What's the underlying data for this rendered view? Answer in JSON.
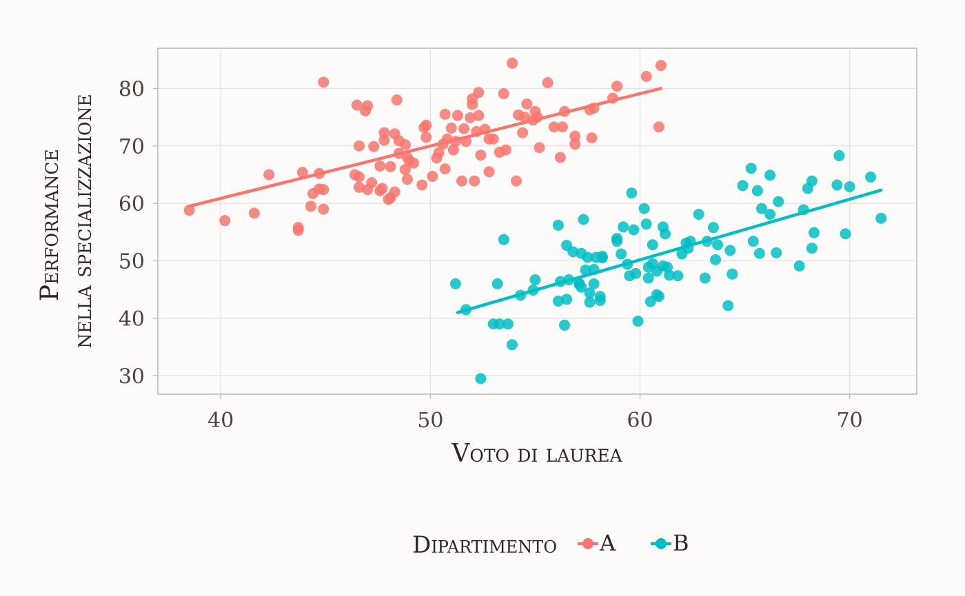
{
  "chart_data": {
    "type": "scatter",
    "xlabel": "Voto di laurea",
    "ylabel_line1": "Performance",
    "ylabel_line2": "nella specializzazione",
    "xlim": [
      37,
      73.2
    ],
    "ylim": [
      26.8,
      87
    ],
    "xticks": [
      40,
      50,
      60,
      70
    ],
    "yticks": [
      30,
      40,
      50,
      60,
      70,
      80
    ],
    "xtick_labels": [
      "40",
      "50",
      "60",
      "70"
    ],
    "ytick_labels": [
      "30",
      "40",
      "50",
      "60",
      "70",
      "80"
    ],
    "grid": true,
    "legend": {
      "title": "Dipartimento",
      "position": "bottom"
    },
    "series": [
      {
        "name": "A",
        "color": "#f8766d",
        "fit": {
          "x": [
            38.5,
            61.0
          ],
          "y": [
            59.5,
            80.0
          ]
        },
        "points": [
          [
            38.5,
            58.8
          ],
          [
            40.2,
            57.0
          ],
          [
            41.6,
            58.3
          ],
          [
            42.3,
            65.0
          ],
          [
            43.7,
            55.8
          ],
          [
            43.7,
            55.3
          ],
          [
            43.9,
            65.4
          ],
          [
            44.3,
            59.5
          ],
          [
            44.4,
            61.7
          ],
          [
            44.7,
            62.5
          ],
          [
            44.7,
            65.2
          ],
          [
            44.9,
            59.0
          ],
          [
            44.9,
            62.4
          ],
          [
            44.9,
            81.1
          ],
          [
            46.4,
            65.0
          ],
          [
            46.5,
            77.1
          ],
          [
            46.6,
            70.0
          ],
          [
            46.6,
            62.8
          ],
          [
            46.6,
            64.6
          ],
          [
            46.9,
            76.1
          ],
          [
            47.0,
            62.4
          ],
          [
            47.0,
            77.0
          ],
          [
            47.2,
            63.6
          ],
          [
            47.3,
            69.9
          ],
          [
            47.6,
            66.5
          ],
          [
            47.6,
            62.2
          ],
          [
            47.7,
            62.6
          ],
          [
            47.8,
            71.0
          ],
          [
            47.8,
            72.3
          ],
          [
            48.0,
            60.7
          ],
          [
            48.1,
            66.4
          ],
          [
            48.1,
            61.0
          ],
          [
            48.3,
            62.0
          ],
          [
            48.3,
            72.1
          ],
          [
            48.4,
            78.0
          ],
          [
            48.5,
            70.9
          ],
          [
            48.5,
            68.7
          ],
          [
            48.8,
            70.2
          ],
          [
            48.8,
            65.9
          ],
          [
            48.9,
            68.0
          ],
          [
            48.9,
            64.2
          ],
          [
            49.0,
            67.4
          ],
          [
            49.2,
            67.0
          ],
          [
            49.6,
            63.2
          ],
          [
            49.7,
            73.2
          ],
          [
            49.8,
            73.6
          ],
          [
            49.8,
            71.5
          ],
          [
            50.1,
            64.7
          ],
          [
            50.3,
            67.9
          ],
          [
            50.4,
            68.8
          ],
          [
            50.6,
            70.3
          ],
          [
            50.7,
            75.5
          ],
          [
            50.7,
            66.0
          ],
          [
            50.8,
            71.2
          ],
          [
            51.0,
            73.1
          ],
          [
            51.1,
            69.3
          ],
          [
            51.2,
            70.8
          ],
          [
            51.3,
            75.3
          ],
          [
            51.5,
            63.9
          ],
          [
            51.6,
            73.0
          ],
          [
            51.7,
            70.8
          ],
          [
            51.9,
            74.9
          ],
          [
            52.0,
            77.2
          ],
          [
            52.0,
            78.2
          ],
          [
            52.1,
            63.9
          ],
          [
            52.2,
            72.5
          ],
          [
            52.3,
            79.3
          ],
          [
            52.3,
            75.3
          ],
          [
            52.4,
            68.4
          ],
          [
            52.6,
            72.9
          ],
          [
            52.8,
            71.2
          ],
          [
            52.8,
            65.5
          ],
          [
            53.0,
            71.2
          ],
          [
            53.3,
            68.9
          ],
          [
            53.5,
            79.1
          ],
          [
            53.6,
            69.3
          ],
          [
            53.9,
            84.4
          ],
          [
            54.1,
            63.9
          ],
          [
            54.2,
            75.4
          ],
          [
            54.4,
            72.3
          ],
          [
            54.5,
            75.0
          ],
          [
            54.6,
            77.3
          ],
          [
            54.9,
            74.5
          ],
          [
            55.0,
            76.0
          ],
          [
            55.1,
            75.0
          ],
          [
            55.2,
            69.7
          ],
          [
            55.6,
            81.0
          ],
          [
            55.9,
            73.3
          ],
          [
            56.2,
            68.0
          ],
          [
            56.3,
            73.3
          ],
          [
            56.4,
            76.0
          ],
          [
            56.9,
            71.7
          ],
          [
            56.9,
            70.3
          ],
          [
            57.6,
            76.3
          ],
          [
            57.7,
            71.4
          ],
          [
            57.8,
            76.6
          ],
          [
            58.7,
            78.3
          ],
          [
            58.9,
            80.4
          ],
          [
            60.3,
            82.1
          ],
          [
            60.9,
            73.3
          ],
          [
            61.0,
            84.0
          ]
        ]
      },
      {
        "name": "B",
        "color": "#00bfc4",
        "fit": {
          "x": [
            51.3,
            71.5
          ],
          "y": [
            41.0,
            62.3
          ]
        },
        "points": [
          [
            51.2,
            46.0
          ],
          [
            51.7,
            41.5
          ],
          [
            52.4,
            29.5
          ],
          [
            53.0,
            39.0
          ],
          [
            53.2,
            46.0
          ],
          [
            53.3,
            39.0
          ],
          [
            53.5,
            53.7
          ],
          [
            53.7,
            39.0
          ],
          [
            53.9,
            35.4
          ],
          [
            54.3,
            44.0
          ],
          [
            54.9,
            44.9
          ],
          [
            55.0,
            46.7
          ],
          [
            56.1,
            56.2
          ],
          [
            56.1,
            43.0
          ],
          [
            56.2,
            46.4
          ],
          [
            56.4,
            38.8
          ],
          [
            56.5,
            43.3
          ],
          [
            56.5,
            52.7
          ],
          [
            56.6,
            46.7
          ],
          [
            56.8,
            51.6
          ],
          [
            57.1,
            45.9
          ],
          [
            57.1,
            46.1
          ],
          [
            57.2,
            45.4
          ],
          [
            57.2,
            51.3
          ],
          [
            57.3,
            57.2
          ],
          [
            57.4,
            48.4
          ],
          [
            57.5,
            50.6
          ],
          [
            57.6,
            42.8
          ],
          [
            57.6,
            44.4
          ],
          [
            57.8,
            46.0
          ],
          [
            57.8,
            48.5
          ],
          [
            57.9,
            50.6
          ],
          [
            58.1,
            43.8
          ],
          [
            58.1,
            43.1
          ],
          [
            58.2,
            50.5
          ],
          [
            58.2,
            50.8
          ],
          [
            58.9,
            53.9
          ],
          [
            58.9,
            53.4
          ],
          [
            59.1,
            51.2
          ],
          [
            59.2,
            55.9
          ],
          [
            59.4,
            49.4
          ],
          [
            59.5,
            47.4
          ],
          [
            59.6,
            61.8
          ],
          [
            59.7,
            55.4
          ],
          [
            59.8,
            47.8
          ],
          [
            59.9,
            39.5
          ],
          [
            60.2,
            59.1
          ],
          [
            60.3,
            56.4
          ],
          [
            60.4,
            48.9
          ],
          [
            60.4,
            47.0
          ],
          [
            60.5,
            42.9
          ],
          [
            60.6,
            49.5
          ],
          [
            60.6,
            52.8
          ],
          [
            60.8,
            44.1
          ],
          [
            60.8,
            48.2
          ],
          [
            60.9,
            43.8
          ],
          [
            61.1,
            55.9
          ],
          [
            61.1,
            49.1
          ],
          [
            61.2,
            54.7
          ],
          [
            61.3,
            48.9
          ],
          [
            61.4,
            47.5
          ],
          [
            61.8,
            47.4
          ],
          [
            62.0,
            51.2
          ],
          [
            62.2,
            53.1
          ],
          [
            62.3,
            52.2
          ],
          [
            62.4,
            53.4
          ],
          [
            62.8,
            58.1
          ],
          [
            63.1,
            47.0
          ],
          [
            63.2,
            53.4
          ],
          [
            63.5,
            55.8
          ],
          [
            63.6,
            50.2
          ],
          [
            63.7,
            52.8
          ],
          [
            64.2,
            42.2
          ],
          [
            64.3,
            51.8
          ],
          [
            64.4,
            47.7
          ],
          [
            64.9,
            63.1
          ],
          [
            65.3,
            66.1
          ],
          [
            65.4,
            53.4
          ],
          [
            65.6,
            62.2
          ],
          [
            65.7,
            51.3
          ],
          [
            65.8,
            59.1
          ],
          [
            66.2,
            58.1
          ],
          [
            66.2,
            64.9
          ],
          [
            66.5,
            51.4
          ],
          [
            66.6,
            60.3
          ],
          [
            67.6,
            49.1
          ],
          [
            67.8,
            58.9
          ],
          [
            68.0,
            62.6
          ],
          [
            68.2,
            52.2
          ],
          [
            68.2,
            63.9
          ],
          [
            68.3,
            54.9
          ],
          [
            69.4,
            63.2
          ],
          [
            69.5,
            68.3
          ],
          [
            69.8,
            54.7
          ],
          [
            70.0,
            62.9
          ],
          [
            71.0,
            64.6
          ],
          [
            71.5,
            57.4
          ]
        ]
      }
    ]
  }
}
